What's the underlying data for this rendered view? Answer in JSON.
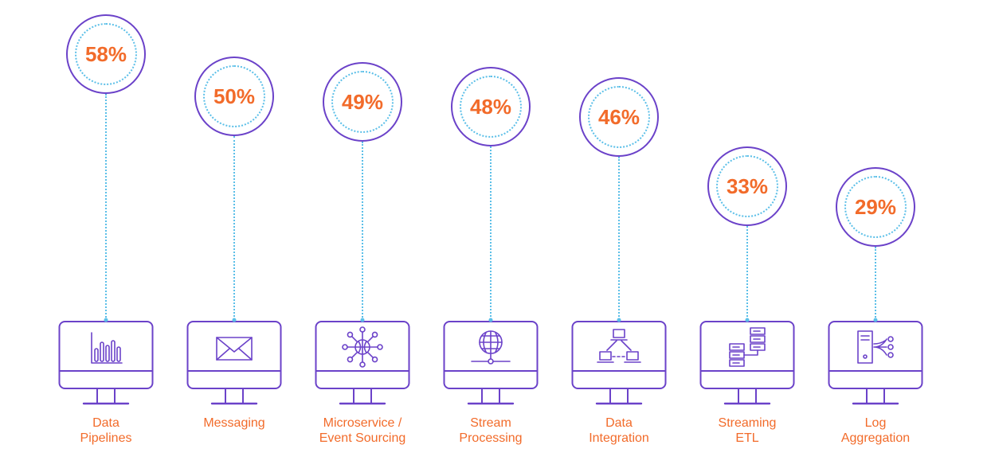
{
  "chart_data": {
    "type": "bar",
    "categories": [
      "Data Pipelines",
      "Messaging",
      "Microservice / Event Sourcing",
      "Stream Processing",
      "Data Integration",
      "Streaming ETL",
      "Log Aggregation"
    ],
    "values": [
      58,
      50,
      49,
      48,
      46,
      33,
      29
    ],
    "value_labels": [
      "58%",
      "50%",
      "49%",
      "48%",
      "46%",
      "33%",
      "29%"
    ],
    "label_lines": [
      [
        "Data",
        "Pipelines"
      ],
      [
        "Messaging"
      ],
      [
        "Microservice /",
        "Event Sourcing"
      ],
      [
        "Stream",
        "Processing"
      ],
      [
        "Data",
        "Integration"
      ],
      [
        "Streaming",
        "ETL"
      ],
      [
        "Log",
        "Aggregation"
      ]
    ],
    "icons": [
      "bar-chart-icon",
      "envelope-icon",
      "network-globe-icon",
      "globe-icon",
      "network-computers-icon",
      "server-stack-icon",
      "server-distribution-icon"
    ],
    "colors": {
      "accent": "#f26b2a",
      "outline": "#6b42c9",
      "dotted": "#5bbfe8"
    }
  }
}
